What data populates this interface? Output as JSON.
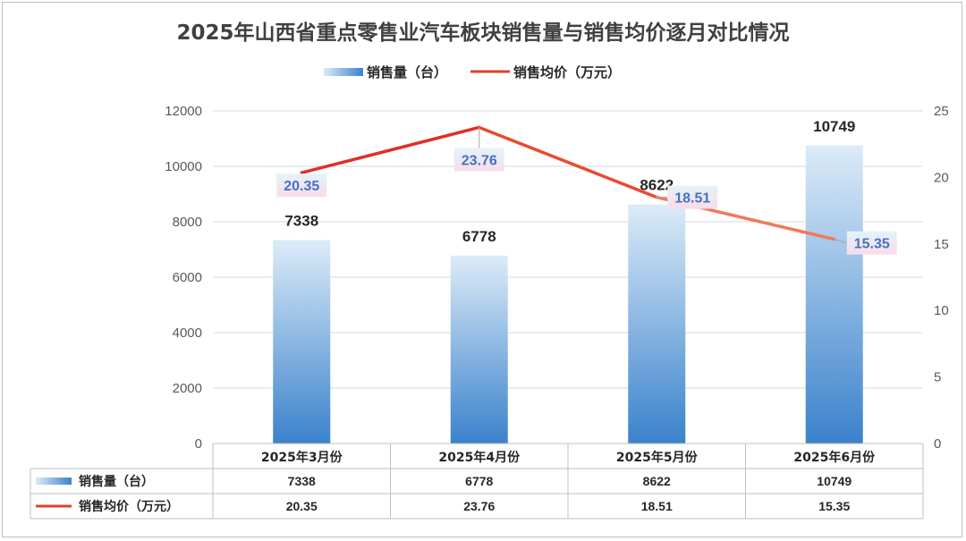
{
  "chart_data": {
    "type": "bar",
    "title": "2025年山西省重点零售业汽车板块销售量与销售均价逐月对比情况",
    "categories": [
      "2025年3月份",
      "2025年4月份",
      "2025年5月份",
      "2025年6月份"
    ],
    "series": [
      {
        "name": "销售量（台）",
        "type": "bar",
        "axis": "left",
        "values": [
          7338,
          6778,
          8622,
          10749
        ],
        "color": "#3f87cf"
      },
      {
        "name": "销售均价（万元）",
        "type": "line",
        "axis": "right",
        "values": [
          20.35,
          23.76,
          18.51,
          15.35
        ],
        "color": "#e84a2f"
      }
    ],
    "y_left": {
      "ylim": [
        0,
        12000
      ],
      "ticks": [
        "0",
        "2000",
        "4000",
        "6000",
        "8000",
        "10000",
        "12000"
      ]
    },
    "y_right": {
      "ylim": [
        0,
        25
      ],
      "ticks": [
        "0",
        "5",
        "10",
        "15",
        "20",
        "25"
      ]
    },
    "bar_labels": [
      "7338",
      "6778",
      "8622",
      "10749"
    ],
    "line_labels": [
      "20.35",
      "23.76",
      "18.51",
      "15.35"
    ],
    "legend_position": "top",
    "grid": true,
    "data_table": {
      "rows": [
        {
          "label": "销售量（台）",
          "cells": [
            "7338",
            "6778",
            "8622",
            "10749"
          ]
        },
        {
          "label": "销售均价（万元）",
          "cells": [
            "20.35",
            "23.76",
            "18.51",
            "15.35"
          ]
        }
      ]
    }
  }
}
